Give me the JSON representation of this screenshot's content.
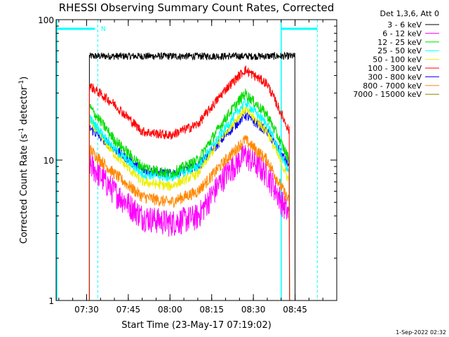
{
  "chart_data": {
    "type": "line",
    "title": "RHESSI Observing Summary Count Rates, Corrected",
    "xlabel": "Start Time (23-May-17 07:19:02)",
    "ylabel": "Corrected Count Rate (s⁻¹ detector⁻¹)",
    "yscale": "log",
    "ylim": [
      1,
      100
    ],
    "xlim": [
      "07:19:02",
      "09:00:00"
    ],
    "x_ticks": [
      "07:30",
      "07:45",
      "08:00",
      "08:15",
      "08:30",
      "08:45"
    ],
    "y_ticks": [
      "1",
      "10",
      "100"
    ],
    "legend_title": "Det 1,3,6, Att 0",
    "legend_position": "right",
    "series": [
      {
        "name": "3 - 6 keV",
        "color": "#000000",
        "x": [
          "07:31",
          "07:40",
          "08:00",
          "08:20",
          "08:40",
          "08:45"
        ],
        "values": [
          55,
          55,
          55,
          55,
          55,
          55
        ]
      },
      {
        "name": "6 - 12 keV",
        "color": "#ff00ff",
        "x": [
          "07:31",
          "07:40",
          "07:50",
          "08:00",
          "08:10",
          "08:20",
          "08:27",
          "08:35",
          "08:43"
        ],
        "values": [
          9.5,
          6,
          4,
          3.6,
          4,
          8,
          11,
          8,
          4
        ]
      },
      {
        "name": "12 - 25 keV",
        "color": "#00dd00",
        "x": [
          "07:31",
          "07:40",
          "07:50",
          "08:00",
          "08:10",
          "08:20",
          "08:27",
          "08:35",
          "08:43"
        ],
        "values": [
          24,
          14,
          9,
          8,
          10,
          20,
          30,
          21,
          10
        ]
      },
      {
        "name": "25 - 50 keV",
        "color": "#00ffff",
        "x": [
          "07:31",
          "07:40",
          "07:50",
          "08:00",
          "08:10",
          "08:20",
          "08:27",
          "08:35",
          "08:43"
        ],
        "values": [
          20,
          12,
          8,
          7.5,
          9,
          17,
          26,
          18,
          8
        ]
      },
      {
        "name": "50 - 100 keV",
        "color": "#eeee00",
        "x": [
          "07:31",
          "07:40",
          "07:50",
          "08:00",
          "08:10",
          "08:20",
          "08:27",
          "08:35",
          "08:43"
        ],
        "values": [
          19,
          11,
          7,
          6.5,
          8,
          16,
          23,
          16,
          7
        ]
      },
      {
        "name": "100 - 300 keV",
        "color": "#ff0000",
        "x": [
          "07:31",
          "07:40",
          "07:50",
          "08:00",
          "08:10",
          "08:20",
          "08:27",
          "08:35",
          "08:43"
        ],
        "values": [
          34,
          25,
          16,
          15,
          18,
          32,
          44,
          35,
          16
        ]
      },
      {
        "name": "300 - 800 keV",
        "color": "#0000ff",
        "x": [
          "07:31",
          "07:40",
          "07:50",
          "08:00",
          "08:10",
          "08:20",
          "08:27",
          "08:35",
          "08:43"
        ],
        "values": [
          17,
          12,
          8.5,
          8,
          9,
          15,
          21,
          16,
          9
        ]
      },
      {
        "name": "800 - 7000 keV",
        "color": "#ff8800",
        "x": [
          "07:31",
          "07:40",
          "07:50",
          "08:00",
          "08:10",
          "08:20",
          "08:27",
          "08:35",
          "08:43"
        ],
        "values": [
          12,
          8,
          5.5,
          5,
          6,
          10,
          14,
          10,
          5
        ]
      },
      {
        "name": "7000 - 15000 keV",
        "color": "#888800",
        "x": [],
        "values": []
      }
    ],
    "annotations": {
      "attenuator_marker": "N",
      "shaded_intervals_color": "#00ffff"
    }
  },
  "timestamp": "1-Sep-2022 02:32"
}
